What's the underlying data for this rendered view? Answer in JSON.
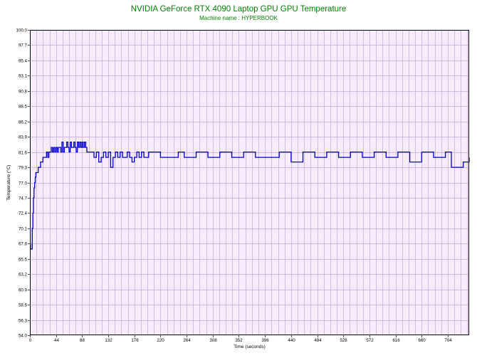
{
  "chart_data": {
    "type": "line",
    "title": "NVIDIA GeForce RTX 4090 Laptop GPU GPU Temperature",
    "subtitle": "Machine name : HYPERBOOK",
    "xlabel": "Time (seconds)",
    "ylabel": "Temperature (°C)",
    "xlim": [
      0,
      740
    ],
    "ylim": [
      54.0,
      100.0
    ],
    "grid": true,
    "legend": "none",
    "x_ticks": [
      "0",
      "44",
      "88",
      "132",
      "176",
      "220",
      "264",
      "308",
      "352",
      "396",
      "440",
      "484",
      "528",
      "572",
      "616",
      "660",
      "704"
    ],
    "y_ticks": [
      "54.0",
      "56.3",
      "58.6",
      "60.9",
      "63.2",
      "65.5",
      "67.8",
      "70.1",
      "72.4",
      "74.7",
      "77.0",
      "79.3",
      "81.6",
      "83.9",
      "86.2",
      "88.5",
      "90.8",
      "93.1",
      "95.4",
      "97.7",
      "100.0"
    ],
    "colors": {
      "line": "#0000cc",
      "plot_bg": "#f7ecfc",
      "grid": "#c9a8d6",
      "title": "#008000"
    },
    "series": [
      {
        "name": "",
        "x": [
          0,
          1,
          2,
          3,
          4,
          5,
          6,
          7,
          8,
          9,
          10,
          11,
          12,
          14,
          16,
          18,
          20,
          22,
          24,
          26,
          28,
          30,
          32,
          34,
          36,
          38,
          40,
          42,
          44,
          46,
          48,
          50,
          52,
          54,
          56,
          58,
          60,
          62,
          64,
          66,
          68,
          70,
          72,
          74,
          76,
          78,
          80,
          82,
          84,
          86,
          88,
          90,
          92,
          94,
          96,
          98,
          100,
          104,
          108,
          112,
          116,
          120,
          124,
          128,
          132,
          136,
          140,
          144,
          148,
          152,
          156,
          160,
          164,
          168,
          172,
          176,
          180,
          184,
          188,
          192,
          196,
          200,
          220,
          240,
          250,
          260,
          280,
          300,
          320,
          340,
          360,
          380,
          400,
          420,
          440,
          460,
          480,
          500,
          520,
          540,
          560,
          580,
          600,
          620,
          640,
          660,
          680,
          700,
          710,
          720,
          730,
          740
        ],
        "y": [
          67.8,
          67,
          67,
          67,
          70.1,
          72.4,
          74.7,
          76.2,
          77,
          77.8,
          78.5,
          78.5,
          78.5,
          79.3,
          79.3,
          80.1,
          80.1,
          80.8,
          80.8,
          80.8,
          81.6,
          80.8,
          81.6,
          81.6,
          82.3,
          81.6,
          82.3,
          81.6,
          82.3,
          81.6,
          82.3,
          82.3,
          81.6,
          83.1,
          81.6,
          82.3,
          82.3,
          83.1,
          82.3,
          81.6,
          83.1,
          82.3,
          82.3,
          83.1,
          82.3,
          81.6,
          83.1,
          82.3,
          83.1,
          82.3,
          83.1,
          82.3,
          83.1,
          82.3,
          81.6,
          81.6,
          81.6,
          81.6,
          80.8,
          81.6,
          80.1,
          80.8,
          81.6,
          80.8,
          81.6,
          79.3,
          80.8,
          81.6,
          80.8,
          81.6,
          80.8,
          80.8,
          81.6,
          80.8,
          80.1,
          80.8,
          81.6,
          80.8,
          81.6,
          80.8,
          80.8,
          81.6,
          80.8,
          80.8,
          81.6,
          80.8,
          81.6,
          80.8,
          81.6,
          80.8,
          81.6,
          80.8,
          80.8,
          81.6,
          80.1,
          81.6,
          80.8,
          81.6,
          80.8,
          81.6,
          80.8,
          81.6,
          80.8,
          81.6,
          80.1,
          81.6,
          80.8,
          81.6,
          79.3,
          79.3,
          80.1,
          80.8
        ]
      }
    ]
  }
}
